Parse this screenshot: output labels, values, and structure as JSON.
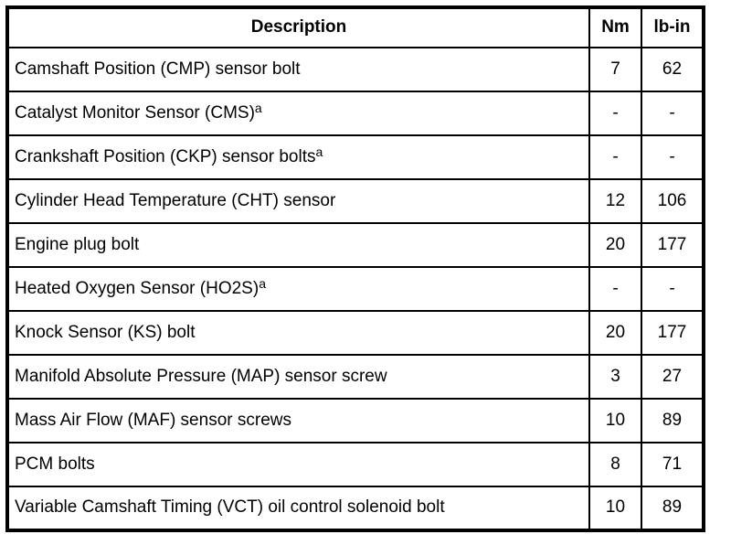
{
  "table": {
    "columns": {
      "description": "Description",
      "nm": "Nm",
      "lbin": "lb-in"
    },
    "rows": [
      {
        "description": "Camshaft Position (CMP) sensor bolt",
        "footnote": "",
        "nm": "7",
        "lbin": "62"
      },
      {
        "description": "Catalyst Monitor Sensor (CMS)",
        "footnote": "a",
        "nm": "-",
        "lbin": "-"
      },
      {
        "description": "Crankshaft Position (CKP) sensor bolts",
        "footnote": "a",
        "nm": "-",
        "lbin": "-"
      },
      {
        "description": "Cylinder Head Temperature (CHT) sensor",
        "footnote": "",
        "nm": "12",
        "lbin": "106"
      },
      {
        "description": "Engine plug bolt",
        "footnote": "",
        "nm": "20",
        "lbin": "177"
      },
      {
        "description": "Heated Oxygen Sensor (HO2S)",
        "footnote": "a",
        "nm": "-",
        "lbin": "-"
      },
      {
        "description": "Knock Sensor (KS) bolt",
        "footnote": "",
        "nm": "20",
        "lbin": "177"
      },
      {
        "description": "Manifold Absolute Pressure (MAP) sensor screw",
        "footnote": "",
        "nm": "3",
        "lbin": "27"
      },
      {
        "description": "Mass Air Flow (MAF) sensor screws",
        "footnote": "",
        "nm": "10",
        "lbin": "89"
      },
      {
        "description": "PCM bolts",
        "footnote": "",
        "nm": "8",
        "lbin": "71"
      },
      {
        "description": "Variable Camshaft Timing (VCT) oil control solenoid bolt",
        "footnote": "",
        "nm": "10",
        "lbin": "89"
      }
    ],
    "colors": {
      "border": "#000000",
      "text": "#000000",
      "background": "#ffffff"
    }
  }
}
